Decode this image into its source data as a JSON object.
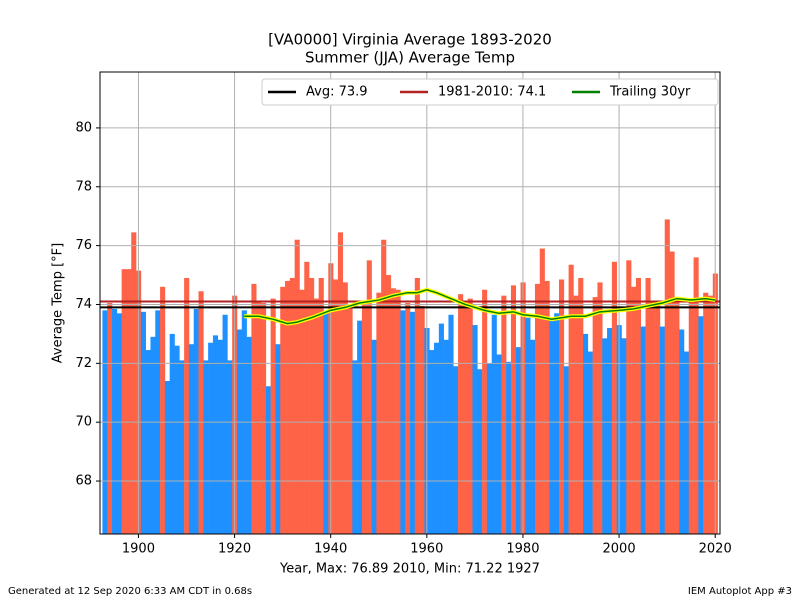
{
  "chart_data": {
    "type": "bar",
    "title": "[VA0000] Virginia Average 1893-2020",
    "subtitle": "Summer (JJA) Average Temp",
    "xlabel": "Year, Max: 76.89 2010, Min: 71.22 1927",
    "ylabel": "Average Temp [°F]",
    "footer_left": "Generated at 12 Sep 2020 6:33 AM CDT in 0.68s",
    "footer_right": "IEM Autoplot App #3",
    "x": [
      1893,
      1894,
      1895,
      1896,
      1897,
      1898,
      1899,
      1900,
      1901,
      1902,
      1903,
      1904,
      1905,
      1906,
      1907,
      1908,
      1909,
      1910,
      1911,
      1912,
      1913,
      1914,
      1915,
      1916,
      1917,
      1918,
      1919,
      1920,
      1921,
      1922,
      1923,
      1924,
      1925,
      1926,
      1927,
      1928,
      1929,
      1930,
      1931,
      1932,
      1933,
      1934,
      1935,
      1936,
      1937,
      1938,
      1939,
      1940,
      1941,
      1942,
      1943,
      1944,
      1945,
      1946,
      1947,
      1948,
      1949,
      1950,
      1951,
      1952,
      1953,
      1954,
      1955,
      1956,
      1957,
      1958,
      1959,
      1960,
      1961,
      1962,
      1963,
      1964,
      1965,
      1966,
      1967,
      1968,
      1969,
      1970,
      1971,
      1972,
      1973,
      1974,
      1975,
      1976,
      1977,
      1978,
      1979,
      1980,
      1981,
      1982,
      1983,
      1984,
      1985,
      1986,
      1987,
      1988,
      1989,
      1990,
      1991,
      1992,
      1993,
      1994,
      1995,
      1996,
      1997,
      1998,
      1999,
      2000,
      2001,
      2002,
      2003,
      2004,
      2005,
      2006,
      2007,
      2008,
      2009,
      2010,
      2011,
      2012,
      2013,
      2014,
      2015,
      2016,
      2017,
      2018,
      2019,
      2020
    ],
    "values": [
      73.8,
      74.05,
      73.85,
      73.7,
      75.2,
      75.2,
      76.45,
      75.15,
      73.75,
      72.45,
      72.9,
      73.8,
      74.6,
      71.4,
      73.0,
      72.6,
      72.1,
      74.9,
      72.65,
      73.85,
      74.45,
      72.1,
      72.7,
      72.95,
      72.8,
      73.65,
      72.1,
      74.3,
      73.15,
      73.8,
      72.9,
      74.7,
      74.1,
      74.05,
      71.22,
      74.2,
      72.65,
      74.6,
      74.8,
      74.9,
      76.2,
      74.5,
      75.45,
      74.9,
      74.2,
      74.9,
      73.7,
      75.4,
      74.85,
      76.45,
      74.75,
      74.0,
      72.1,
      73.45,
      74.1,
      75.5,
      72.8,
      74.4,
      76.2,
      75.0,
      74.55,
      74.5,
      73.8,
      74.05,
      73.75,
      74.9,
      73.95,
      73.2,
      72.45,
      72.7,
      73.35,
      72.8,
      73.65,
      71.9,
      74.35,
      74.0,
      74.2,
      73.3,
      71.8,
      74.5,
      72.0,
      73.65,
      72.3,
      74.3,
      72.05,
      74.65,
      72.55,
      74.75,
      73.55,
      72.8,
      74.7,
      75.9,
      74.8,
      73.5,
      73.7,
      74.85,
      71.9,
      75.35,
      74.3,
      74.9,
      73.0,
      72.4,
      74.25,
      74.75,
      72.85,
      73.2,
      75.45,
      73.3,
      72.85,
      75.5,
      74.6,
      74.9,
      73.25,
      74.9,
      74.1,
      74.0,
      73.25,
      76.89,
      75.8,
      74.1,
      73.15,
      72.4,
      74.2,
      75.6,
      73.6,
      74.4,
      74.3,
      75.05
    ],
    "colors": {
      "above": "#ff6347",
      "below": "#1e90ff"
    },
    "reference_lines": [
      {
        "name": "Avg: 73.9",
        "value": 73.9,
        "color": "#000000"
      },
      {
        "name": "1981-2010: 74.1",
        "value": 74.1,
        "color": "#b22222"
      }
    ],
    "trailing": {
      "name": "Trailing 30yr",
      "color": "#008000",
      "outline": "#ffff00",
      "x": [
        1922,
        1925,
        1928,
        1931,
        1933,
        1936,
        1940,
        1943,
        1946,
        1950,
        1953,
        1956,
        1958,
        1960,
        1962,
        1965,
        1968,
        1972,
        1975,
        1978,
        1980,
        1983,
        1986,
        1990,
        1993,
        1996,
        2000,
        2003,
        2006,
        2009,
        2012,
        2015,
        2018,
        2020
      ],
      "values": [
        73.6,
        73.6,
        73.5,
        73.35,
        73.4,
        73.55,
        73.8,
        73.9,
        74.05,
        74.15,
        74.3,
        74.4,
        74.4,
        74.5,
        74.4,
        74.2,
        74.0,
        73.8,
        73.7,
        73.75,
        73.65,
        73.6,
        73.5,
        73.6,
        73.6,
        73.75,
        73.8,
        73.85,
        73.95,
        74.05,
        74.2,
        74.15,
        74.2,
        74.15
      ]
    },
    "xlim": [
      1892,
      2021
    ],
    "ylim": [
      66.2,
      81.9
    ],
    "xticks": [
      1900,
      1920,
      1940,
      1960,
      1980,
      2000,
      2020
    ],
    "yticks": [
      68,
      70,
      72,
      74,
      76,
      78,
      80
    ],
    "grid": true,
    "legend": "upper right"
  }
}
